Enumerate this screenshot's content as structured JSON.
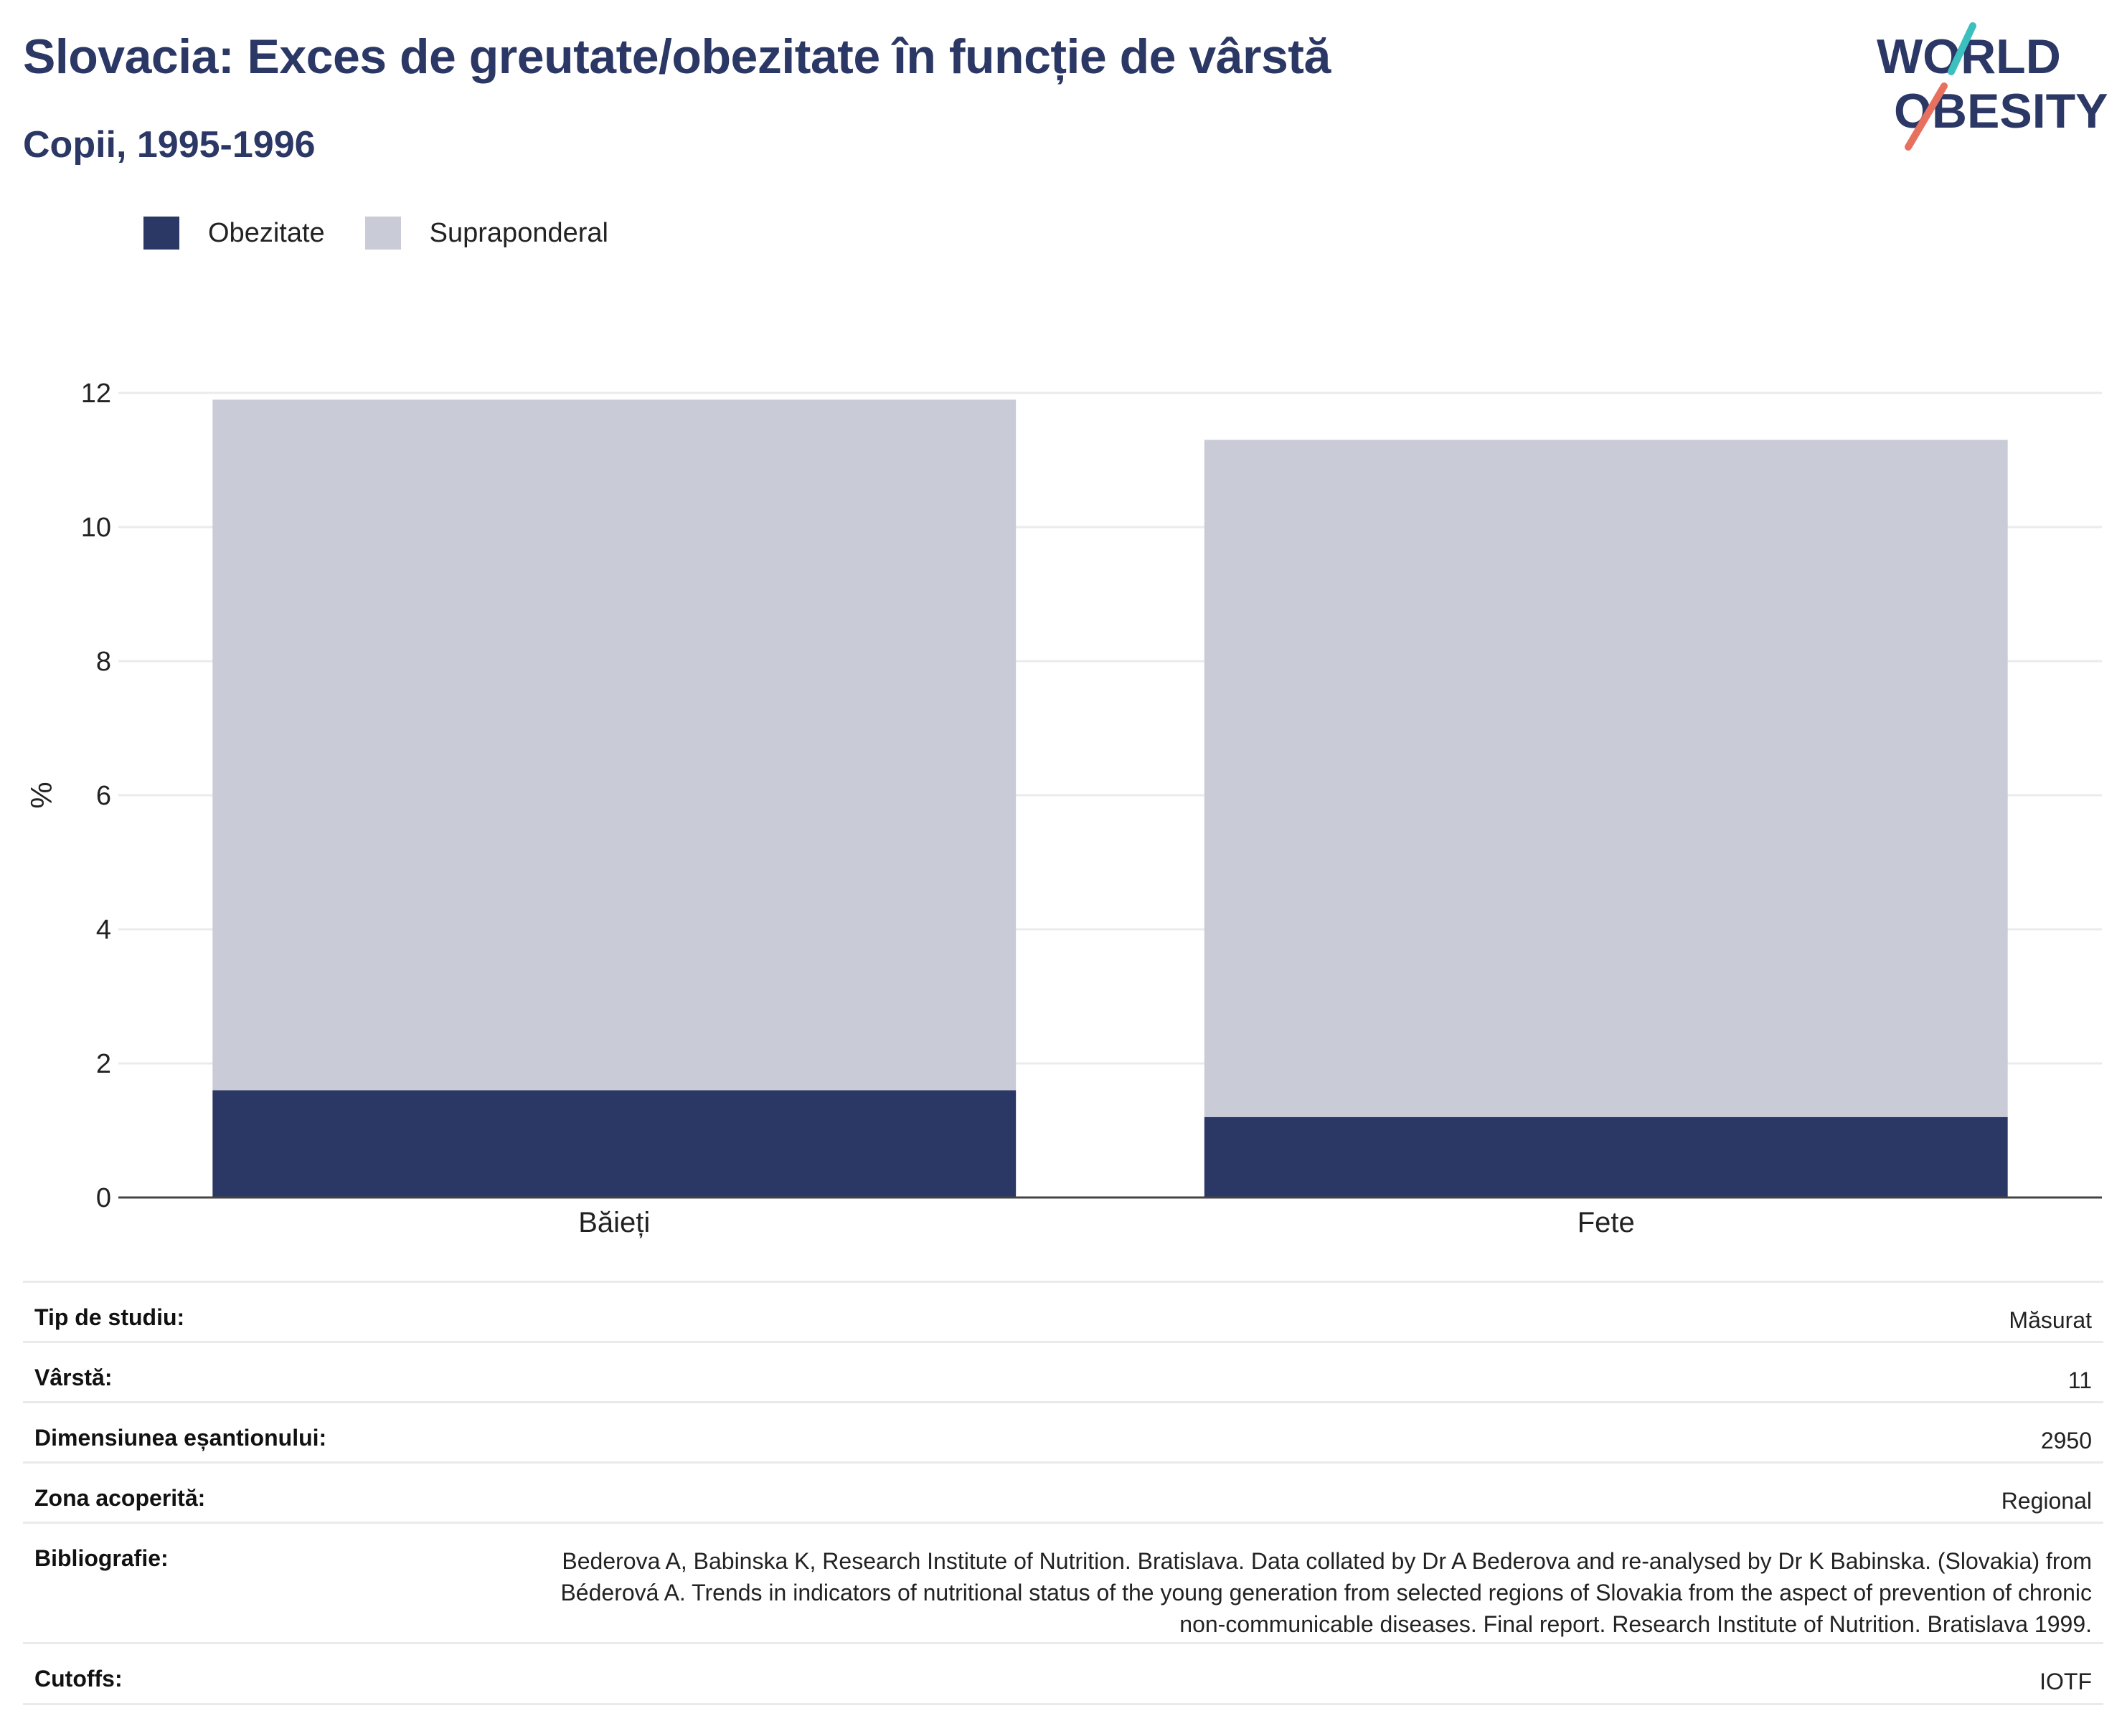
{
  "header": {
    "title": "Slovacia: Exces de greutate/obezitate în funcție de vârstă",
    "subtitle": "Copii, 1995-1996",
    "logo_line1": "WORLD",
    "logo_line2": "OBESITY"
  },
  "colors": {
    "obesity": "#2b3765",
    "overweight": "#c9cbd7",
    "title": "#2b3765",
    "logo_teal": "#3bbfbf",
    "logo_coral": "#e8705f"
  },
  "legend": {
    "items": [
      {
        "label": "Obezitate",
        "color": "#2b3765"
      },
      {
        "label": "Supraponderal",
        "color": "#c9cbd7"
      }
    ]
  },
  "chart_data": {
    "type": "bar",
    "stacked": true,
    "categories": [
      "Băieți",
      "Fete"
    ],
    "series": [
      {
        "name": "Obezitate",
        "values": [
          1.6,
          1.2
        ]
      },
      {
        "name": "Supraponderal",
        "values": [
          10.3,
          10.1
        ]
      }
    ],
    "title": "",
    "xlabel": "",
    "ylabel": "%",
    "ylim": [
      0,
      12
    ],
    "yticks": [
      0,
      2,
      4,
      6,
      8,
      10,
      12
    ],
    "grid": true,
    "legend_position": "top-left"
  },
  "info": {
    "rows": [
      {
        "label": "Tip de studiu:",
        "value": "Măsurat"
      },
      {
        "label": "Vârstă:",
        "value": "11"
      },
      {
        "label": "Dimensiunea eșantionului:",
        "value": "2950"
      },
      {
        "label": "Zona acoperită:",
        "value": "Regional"
      },
      {
        "label": "Bibliografie:",
        "value": "Bederova A, Babinska K, Research Institute of Nutrition. Bratislava. Data collated by Dr A Bederova and re-analysed by Dr K Babinska. (Slovakia) from Béderová A. Trends in indicators of nutritional status of the young generation from selected regions of Slovakia from the aspect of prevention of chronic non-communicable diseases. Final report. Research Institute of Nutrition. Bratislava 1999."
      },
      {
        "label": "Cutoffs:",
        "value": "IOTF"
      }
    ]
  }
}
